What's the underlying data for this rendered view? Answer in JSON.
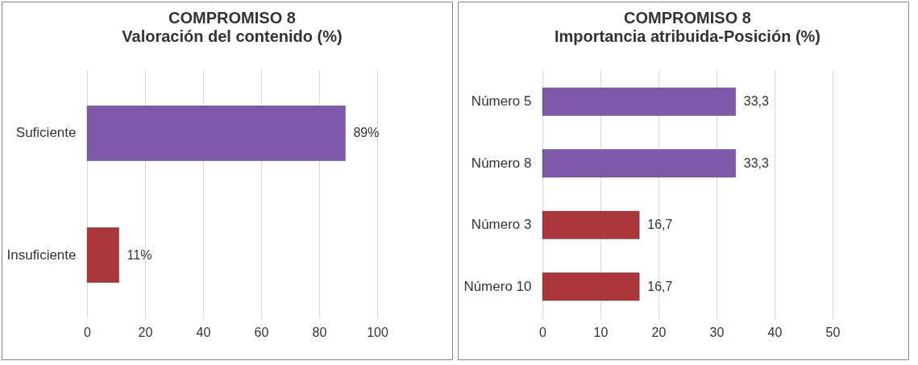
{
  "chart_data": [
    {
      "type": "bar",
      "orientation": "horizontal",
      "title": "COMPROMISO 8",
      "subtitle": "Valoración del contenido  (%)",
      "categories": [
        "Suficiente",
        "Insuficiente"
      ],
      "values": [
        89,
        11
      ],
      "colors": [
        "#7f5aab",
        "#a8363a"
      ],
      "value_labels": [
        "89%",
        "11%"
      ],
      "xlim": [
        0,
        100
      ],
      "xticks": [
        0,
        20,
        40,
        60,
        80,
        100
      ],
      "grid": "x"
    },
    {
      "type": "bar",
      "orientation": "horizontal",
      "title": "COMPROMISO 8",
      "subtitle": "Importancia atribuida-Posición (%)",
      "categories": [
        "Número 5",
        "Número 8",
        "Número 3",
        "Número 10"
      ],
      "values": [
        33.3,
        33.3,
        16.7,
        16.7
      ],
      "colors": [
        "#7f5aab",
        "#7f5aab",
        "#a8363a",
        "#a8363a"
      ],
      "value_labels": [
        "33,3",
        "33,3",
        "16,7",
        "16,7"
      ],
      "xlim": [
        0,
        50
      ],
      "xticks": [
        0,
        10,
        20,
        30,
        40,
        50
      ],
      "grid": "x"
    }
  ]
}
